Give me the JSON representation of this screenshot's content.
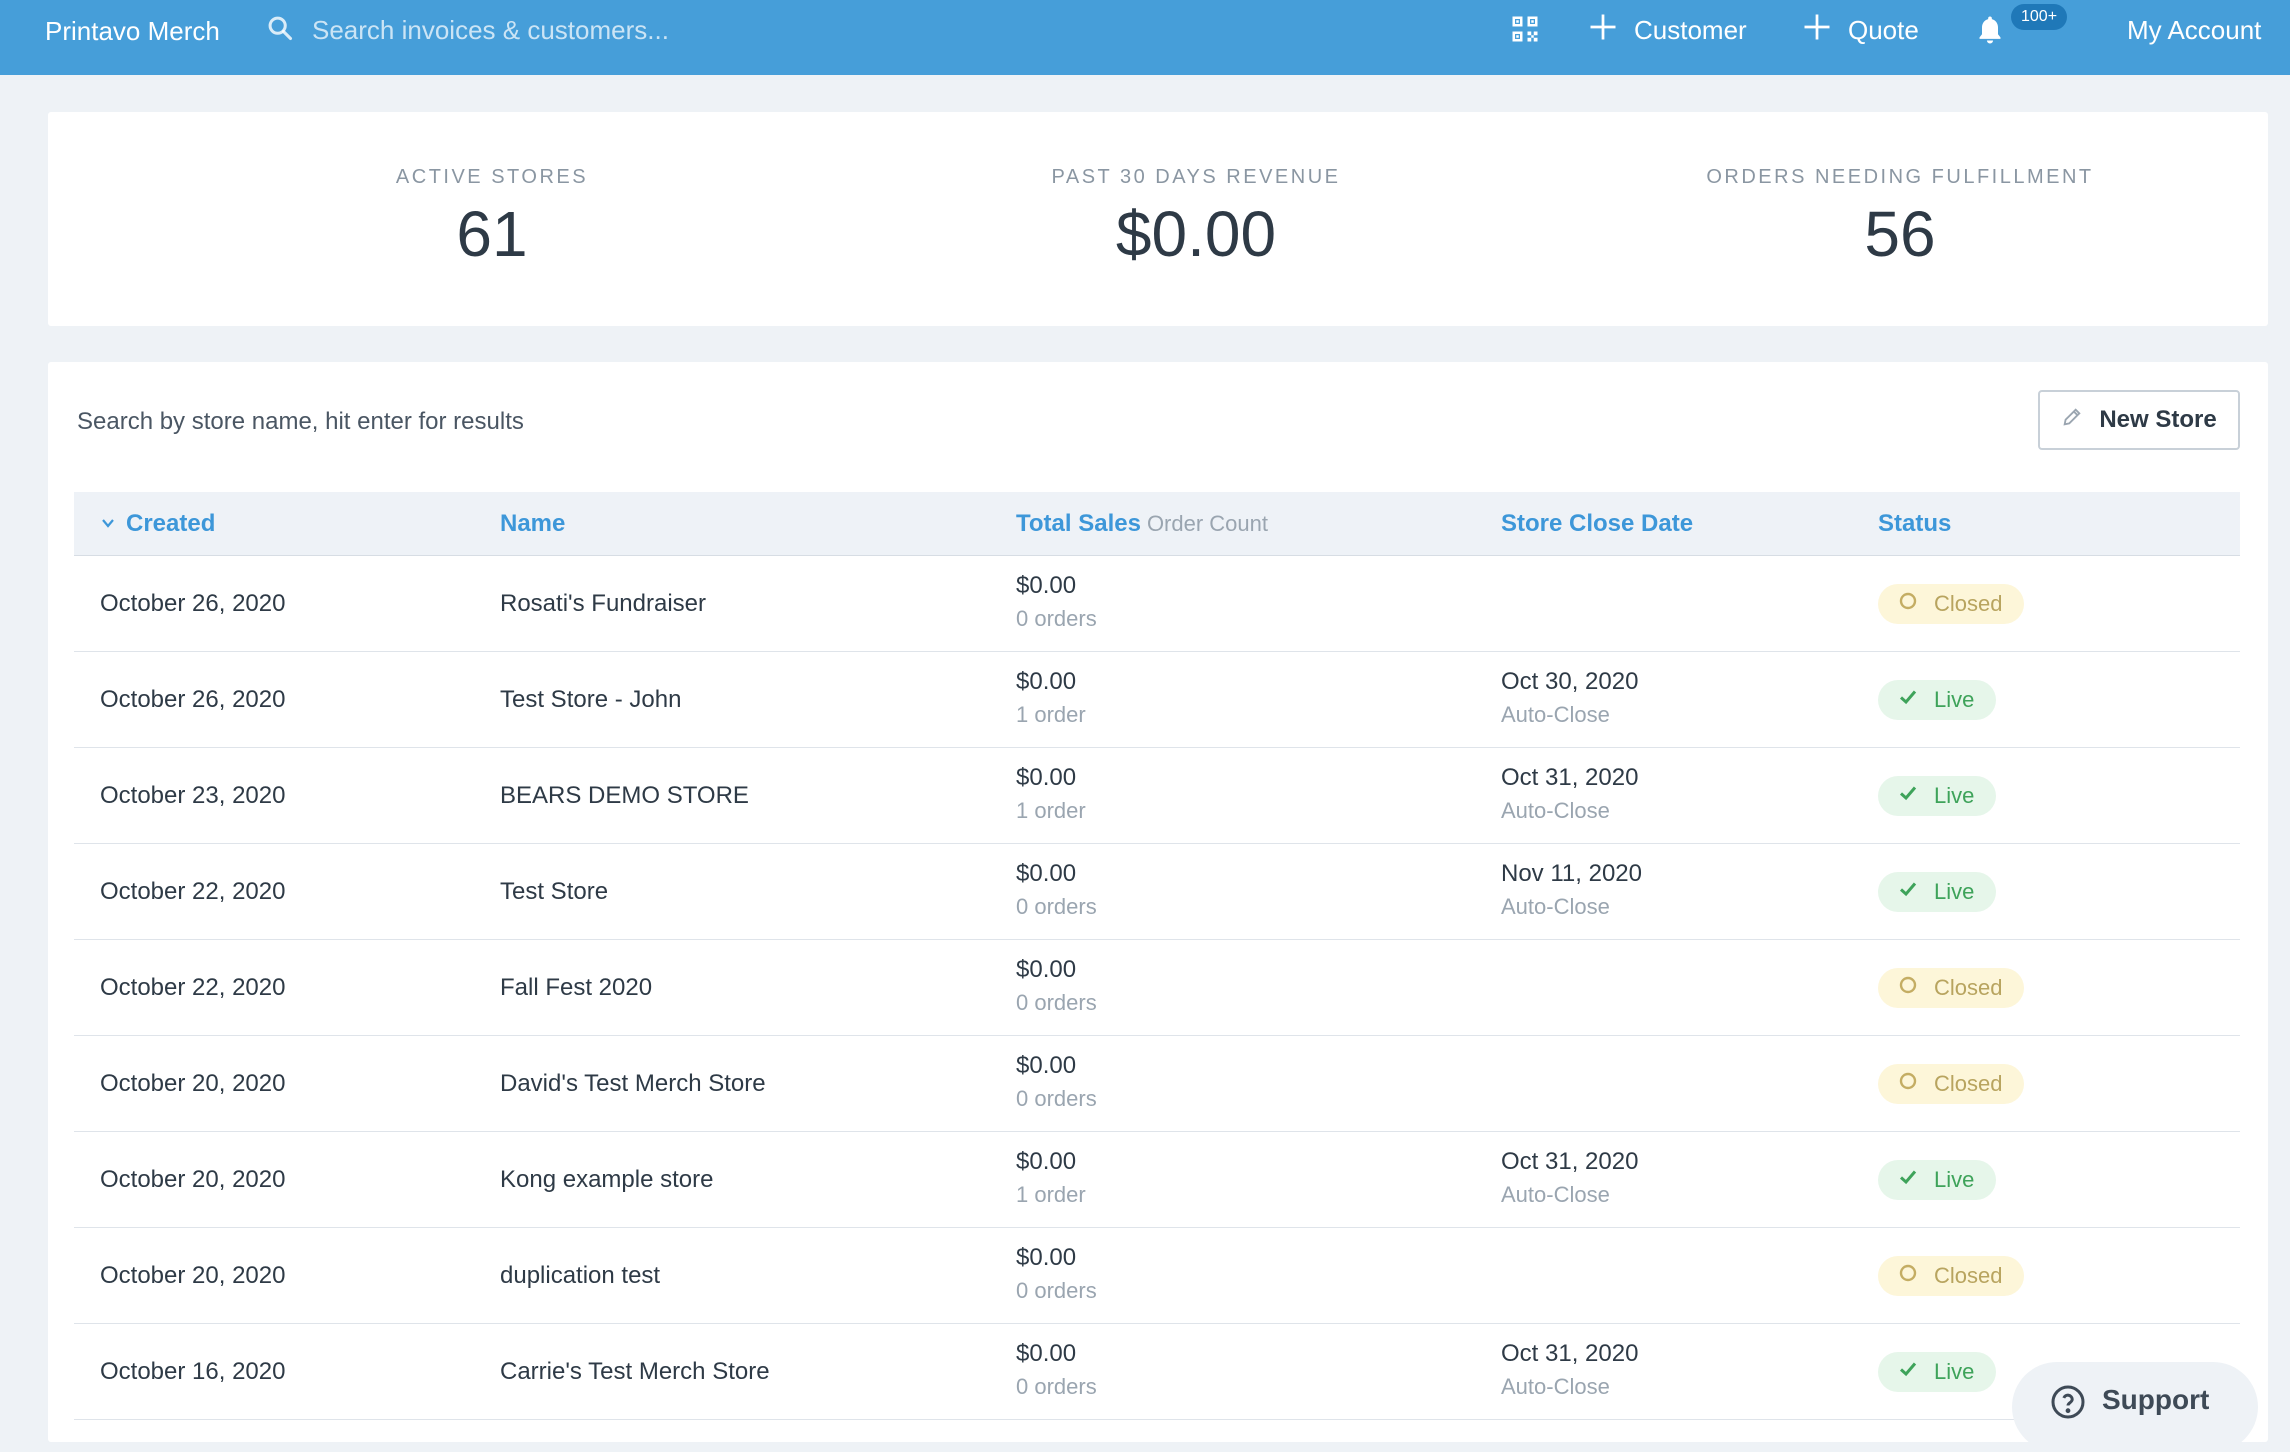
{
  "header": {
    "brand": "Printavo Merch",
    "search_placeholder": "Search invoices & customers...",
    "customer_label": "Customer",
    "quote_label": "Quote",
    "notification_badge": "100+",
    "account_label": "My Account",
    "accent_color": "#469ed9"
  },
  "stats": [
    {
      "label": "ACTIVE STORES",
      "value": "61"
    },
    {
      "label": "PAST 30 DAYS REVENUE",
      "value": "$0.00"
    },
    {
      "label": "ORDERS NEEDING FULFILLMENT",
      "value": "56"
    }
  ],
  "stores": {
    "search_placeholder": "Search by store name, hit enter for results",
    "new_store_label": "New Store",
    "columns": {
      "created": "Created",
      "name": "Name",
      "total_sales": "Total Sales",
      "order_count": "Order Count",
      "close_date": "Store Close Date",
      "status": "Status"
    },
    "rows": [
      {
        "created": "October 26, 2020",
        "name": "Rosati's Fundraiser",
        "sales": "$0.00",
        "orders": "0 orders",
        "close_date": "",
        "close_note": "",
        "status": "Closed"
      },
      {
        "created": "October 26, 2020",
        "name": "Test Store - John",
        "sales": "$0.00",
        "orders": "1 order",
        "close_date": "Oct 30, 2020",
        "close_note": "Auto-Close",
        "status": "Live"
      },
      {
        "created": "October 23, 2020",
        "name": "BEARS DEMO STORE",
        "sales": "$0.00",
        "orders": "1 order",
        "close_date": "Oct 31, 2020",
        "close_note": "Auto-Close",
        "status": "Live"
      },
      {
        "created": "October 22, 2020",
        "name": "Test Store",
        "sales": "$0.00",
        "orders": "0 orders",
        "close_date": "Nov 11, 2020",
        "close_note": "Auto-Close",
        "status": "Live"
      },
      {
        "created": "October 22, 2020",
        "name": "Fall Fest 2020",
        "sales": "$0.00",
        "orders": "0 orders",
        "close_date": "",
        "close_note": "",
        "status": "Closed"
      },
      {
        "created": "October 20, 2020",
        "name": "David's Test Merch Store",
        "sales": "$0.00",
        "orders": "0 orders",
        "close_date": "",
        "close_note": "",
        "status": "Closed"
      },
      {
        "created": "October 20, 2020",
        "name": "Kong example store",
        "sales": "$0.00",
        "orders": "1 order",
        "close_date": "Oct 31, 2020",
        "close_note": "Auto-Close",
        "status": "Live"
      },
      {
        "created": "October 20, 2020",
        "name": "duplication test",
        "sales": "$0.00",
        "orders": "0 orders",
        "close_date": "",
        "close_note": "",
        "status": "Closed"
      },
      {
        "created": "October 16, 2020",
        "name": "Carrie's Test Merch Store",
        "sales": "$0.00",
        "orders": "0 orders",
        "close_date": "Oct 31, 2020",
        "close_note": "Auto-Close",
        "status": "Live"
      }
    ]
  },
  "support_label": "Support"
}
